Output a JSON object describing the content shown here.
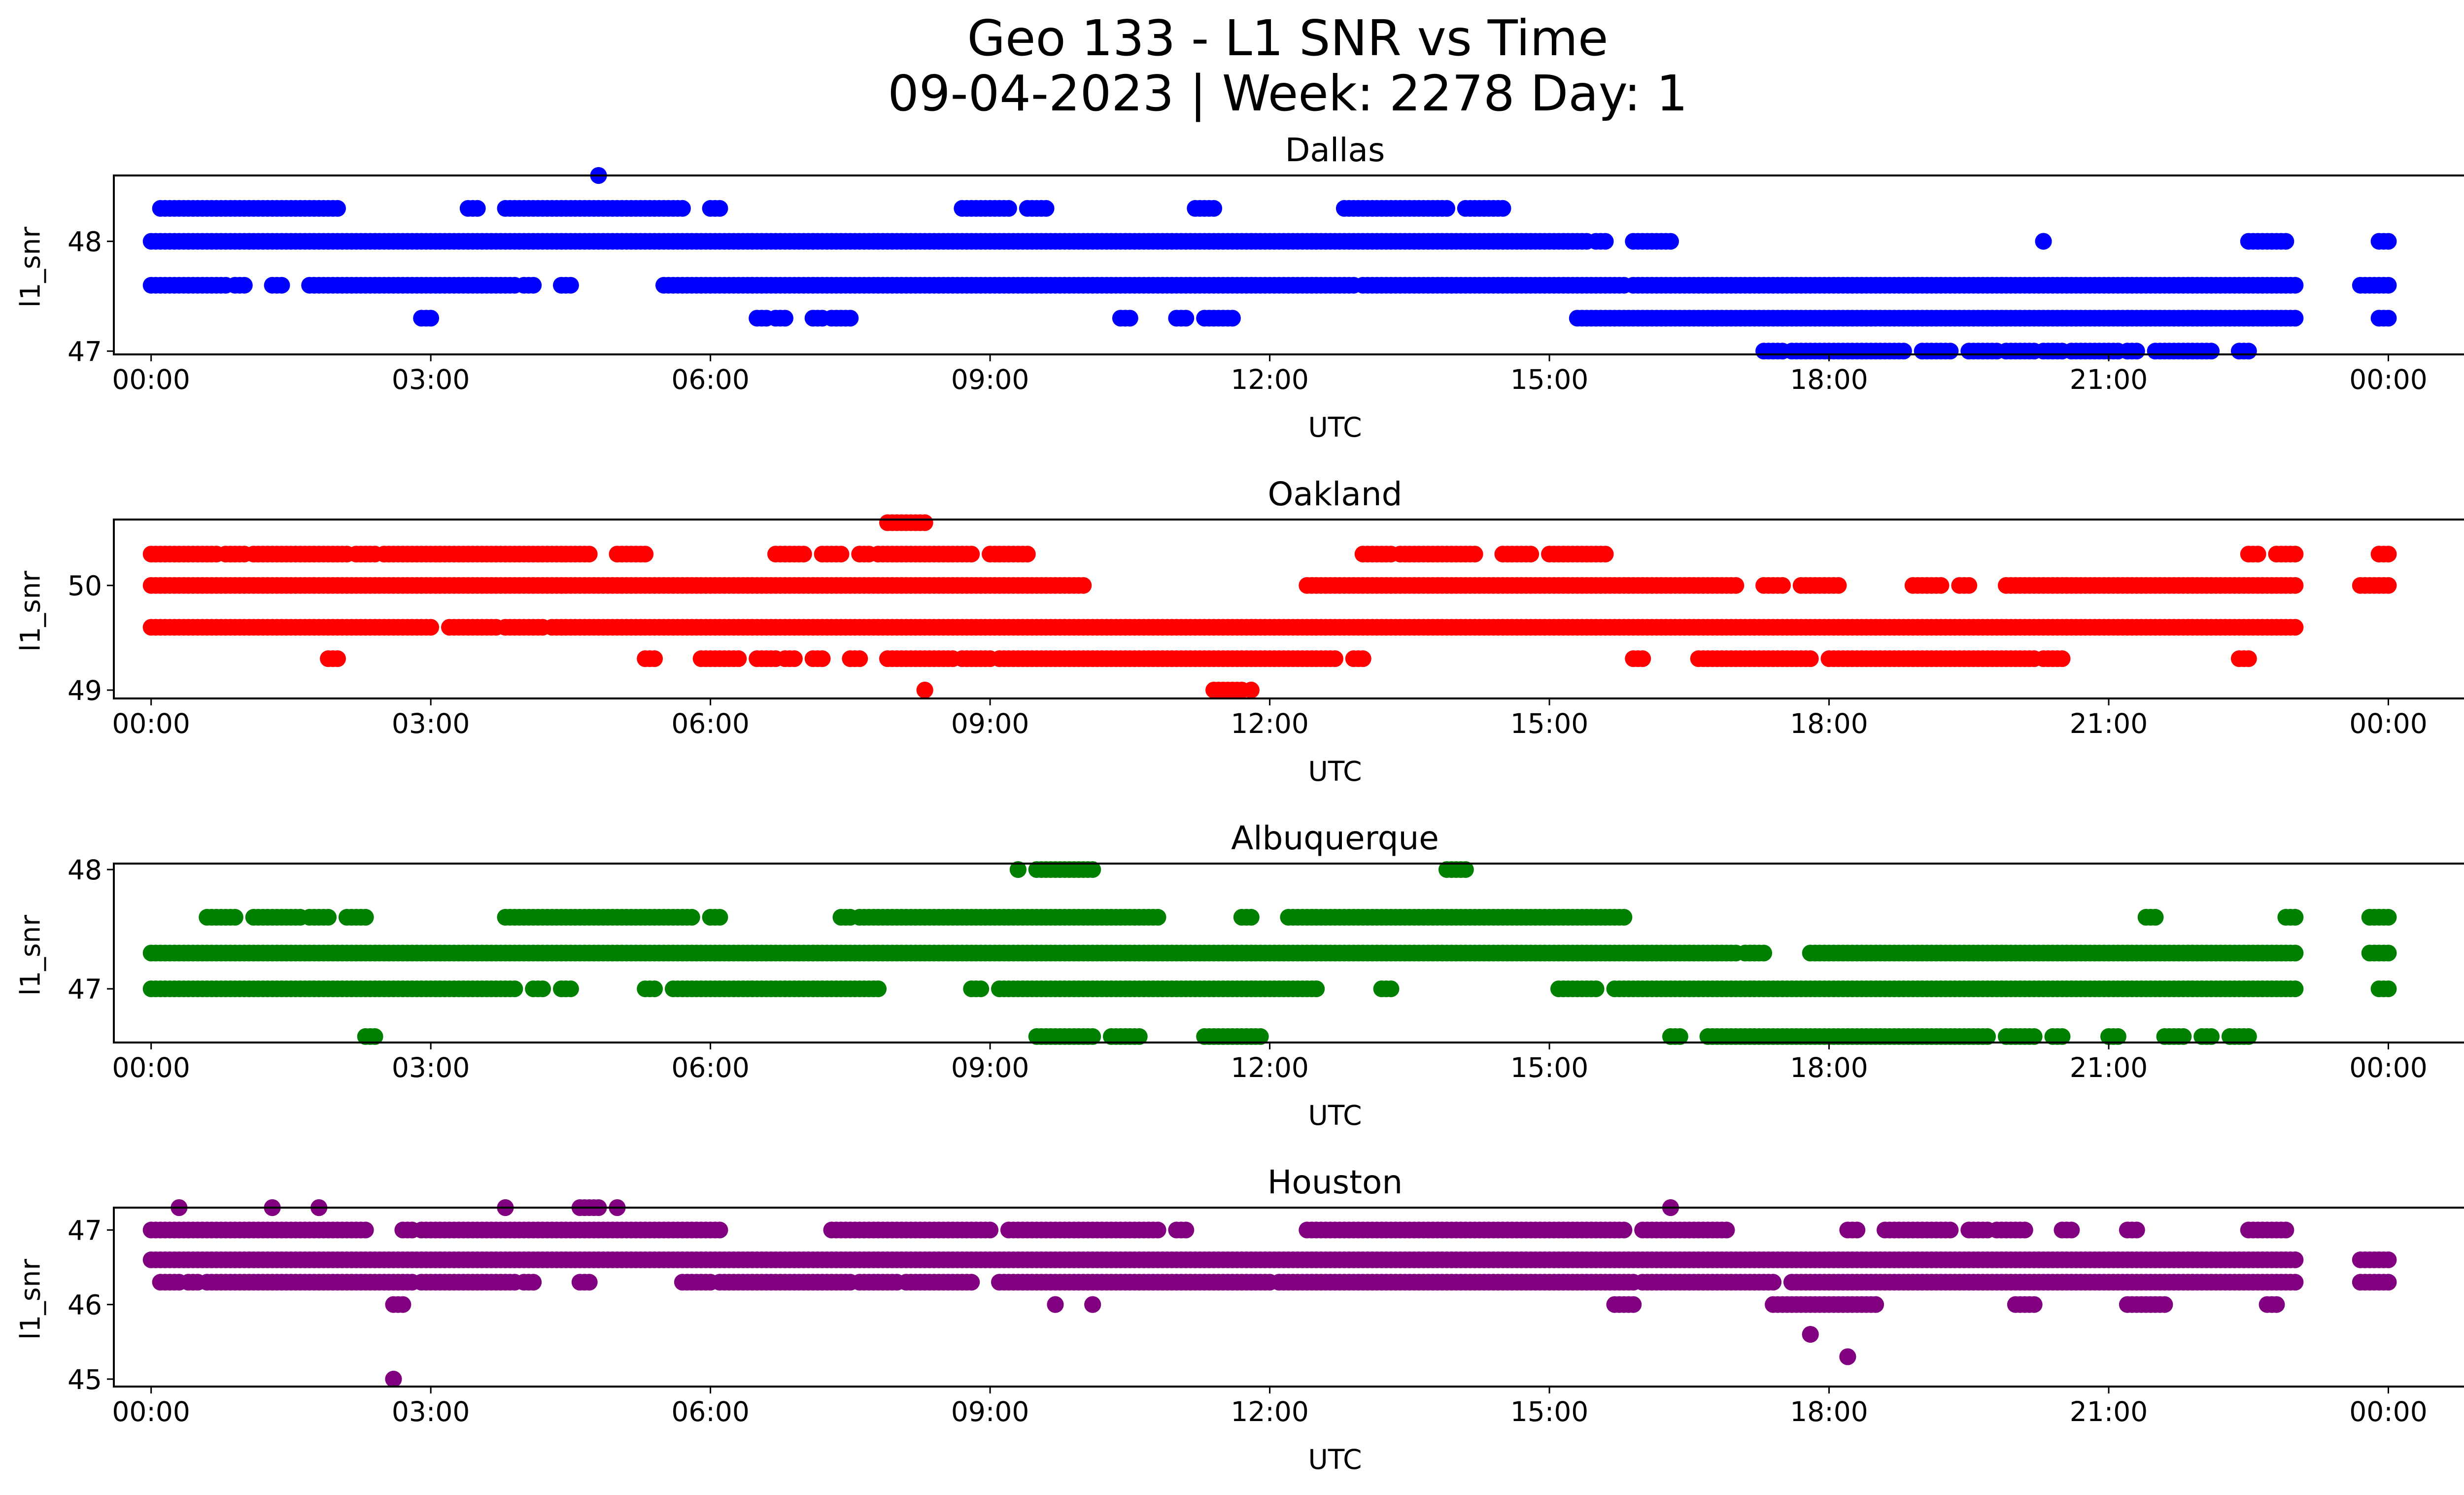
{
  "title": "Geo 133 - L1 SNR vs Time",
  "subtitle": "09-04-2023 | Week: 2278 Day: 1",
  "chart_data": [
    {
      "type": "scatter",
      "title": "Dallas",
      "xlabel": "UTC",
      "ylabel": "l1_snr",
      "color": "#0000ff",
      "xlim": [
        -0.4,
        25.8
      ],
      "ylim": [
        46.97,
        48.6
      ],
      "xticks": [
        "00:00",
        "03:00",
        "06:00",
        "09:00",
        "12:00",
        "15:00",
        "18:00",
        "21:00",
        "00:00"
      ],
      "yticks": [
        47,
        48
      ],
      "series": [
        {
          "level": 48.0,
          "segments": [
            [
              0.0,
              15.4
            ],
            [
              15.5,
              15.6
            ],
            [
              15.9,
              16.3
            ],
            [
              22.5,
              22.9
            ],
            [
              23.9,
              24.0
            ]
          ]
        },
        {
          "level": 48.3,
          "segments": [
            [
              0.1,
              2.0
            ],
            [
              3.4,
              3.5
            ],
            [
              3.8,
              5.7
            ],
            [
              6.0,
              6.1
            ],
            [
              8.7,
              9.2
            ],
            [
              9.4,
              9.6
            ],
            [
              11.2,
              11.4
            ],
            [
              12.8,
              13.9
            ],
            [
              14.1,
              14.5
            ]
          ]
        },
        {
          "level": 47.6,
          "segments": [
            [
              0.0,
              0.8
            ],
            [
              0.9,
              1.0
            ],
            [
              1.3,
              1.4
            ],
            [
              1.7,
              3.9
            ],
            [
              4.0,
              4.1
            ],
            [
              4.4,
              4.5
            ],
            [
              5.5,
              12.9
            ],
            [
              13.0,
              15.8
            ],
            [
              15.9,
              23.0
            ],
            [
              23.7,
              24.0
            ]
          ]
        },
        {
          "level": 47.3,
          "segments": [
            [
              2.9,
              3.0
            ],
            [
              6.5,
              6.6
            ],
            [
              6.7,
              6.8
            ],
            [
              7.1,
              7.2
            ],
            [
              7.3,
              7.5
            ],
            [
              10.4,
              10.5
            ],
            [
              11.0,
              11.1
            ],
            [
              11.3,
              11.6
            ],
            [
              15.3,
              23.0
            ],
            [
              23.9,
              24.0
            ]
          ]
        },
        {
          "level": 47.0,
          "segments": [
            [
              17.3,
              17.5
            ],
            [
              17.6,
              18.8
            ],
            [
              19.0,
              19.3
            ],
            [
              19.5,
              19.8
            ],
            [
              19.9,
              20.2
            ],
            [
              20.3,
              20.5
            ],
            [
              20.6,
              21.1
            ],
            [
              21.2,
              21.3
            ],
            [
              21.5,
              22.1
            ],
            [
              22.4,
              22.5
            ]
          ]
        },
        {
          "level": 48.6,
          "segments": [
            [
              4.8,
              4.8
            ]
          ]
        },
        {
          "level": 48.0,
          "segments": [
            [
              20.3,
              20.3
            ]
          ]
        }
      ]
    },
    {
      "type": "scatter",
      "title": "Oakland",
      "xlabel": "UTC",
      "ylabel": "l1_snr",
      "color": "#ff0000",
      "xlim": [
        -0.4,
        25.8
      ],
      "ylim": [
        48.92,
        50.63
      ],
      "xticks": [
        "00:00",
        "03:00",
        "06:00",
        "09:00",
        "12:00",
        "15:00",
        "18:00",
        "21:00",
        "00:00"
      ],
      "yticks": [
        49,
        50
      ],
      "series": [
        {
          "level": 50.0,
          "segments": [
            [
              0.0,
              10.0
            ],
            [
              12.4,
              17.0
            ],
            [
              17.3,
              17.5
            ],
            [
              17.7,
              18.1
            ],
            [
              18.9,
              19.2
            ],
            [
              19.4,
              19.5
            ],
            [
              19.9,
              23.0
            ],
            [
              23.7,
              24.0
            ]
          ]
        },
        {
          "level": 50.3,
          "segments": [
            [
              0.0,
              0.7
            ],
            [
              0.8,
              1.0
            ],
            [
              1.1,
              2.1
            ],
            [
              2.2,
              2.4
            ],
            [
              2.5,
              4.7
            ],
            [
              5.0,
              5.3
            ],
            [
              6.7,
              7.0
            ],
            [
              7.2,
              7.4
            ],
            [
              7.6,
              7.7
            ],
            [
              7.8,
              8.8
            ],
            [
              9.0,
              9.4
            ],
            [
              13.0,
              13.3
            ],
            [
              13.4,
              14.2
            ],
            [
              14.5,
              14.8
            ],
            [
              15.0,
              15.6
            ],
            [
              22.5,
              22.6
            ],
            [
              22.8,
              23.0
            ],
            [
              23.9,
              24.0
            ]
          ]
        },
        {
          "level": 49.6,
          "segments": [
            [
              0.0,
              3.0
            ],
            [
              3.2,
              3.7
            ],
            [
              3.8,
              4.2
            ],
            [
              4.3,
              23.0
            ]
          ]
        },
        {
          "level": 49.3,
          "segments": [
            [
              1.9,
              2.0
            ],
            [
              5.3,
              5.4
            ],
            [
              5.9,
              6.3
            ],
            [
              6.5,
              6.7
            ],
            [
              6.8,
              6.9
            ],
            [
              7.1,
              7.2
            ],
            [
              7.5,
              7.6
            ],
            [
              7.9,
              8.6
            ],
            [
              8.7,
              9.0
            ],
            [
              9.1,
              12.7
            ],
            [
              12.9,
              13.0
            ],
            [
              15.9,
              16.0
            ],
            [
              16.6,
              17.8
            ],
            [
              18.0,
              20.2
            ],
            [
              20.3,
              20.5
            ],
            [
              22.4,
              22.5
            ]
          ]
        },
        {
          "level": 49.0,
          "segments": [
            [
              8.3,
              8.3
            ],
            [
              11.4,
              11.7
            ],
            [
              11.8,
              11.8
            ]
          ]
        },
        {
          "level": 50.6,
          "segments": [
            [
              7.9,
              8.3
            ]
          ]
        }
      ]
    },
    {
      "type": "scatter",
      "title": "Albuquerque",
      "xlabel": "UTC",
      "ylabel": "l1_snr",
      "color": "#008000",
      "xlim": [
        -0.4,
        25.8
      ],
      "ylim": [
        46.55,
        48.05
      ],
      "xticks": [
        "00:00",
        "03:00",
        "06:00",
        "09:00",
        "12:00",
        "15:00",
        "18:00",
        "21:00",
        "00:00"
      ],
      "yticks": [
        47,
        48
      ],
      "series": [
        {
          "level": 47.3,
          "segments": [
            [
              0.0,
              17.0
            ],
            [
              17.1,
              17.3
            ],
            [
              17.8,
              23.0
            ],
            [
              23.8,
              24.0
            ]
          ]
        },
        {
          "level": 47.0,
          "segments": [
            [
              0.0,
              3.9
            ],
            [
              4.1,
              4.2
            ],
            [
              4.4,
              4.5
            ],
            [
              5.3,
              5.4
            ],
            [
              5.6,
              7.8
            ],
            [
              8.8,
              8.9
            ],
            [
              9.1,
              12.5
            ],
            [
              13.2,
              13.3
            ],
            [
              15.1,
              15.5
            ],
            [
              15.7,
              23.0
            ],
            [
              23.9,
              24.0
            ]
          ]
        },
        {
          "level": 47.6,
          "segments": [
            [
              0.6,
              0.9
            ],
            [
              1.1,
              1.6
            ],
            [
              1.7,
              1.9
            ],
            [
              2.1,
              2.3
            ],
            [
              3.8,
              5.8
            ],
            [
              6.0,
              6.1
            ],
            [
              7.4,
              7.5
            ],
            [
              7.6,
              10.8
            ],
            [
              11.7,
              11.8
            ],
            [
              12.2,
              15.8
            ],
            [
              21.4,
              21.5
            ],
            [
              22.9,
              23.0
            ],
            [
              23.8,
              24.0
            ]
          ]
        },
        {
          "level": 46.6,
          "segments": [
            [
              2.3,
              2.4
            ],
            [
              9.5,
              10.1
            ],
            [
              10.3,
              10.6
            ],
            [
              11.3,
              11.9
            ],
            [
              16.3,
              16.4
            ],
            [
              16.7,
              19.7
            ],
            [
              19.9,
              20.2
            ],
            [
              20.4,
              20.5
            ],
            [
              21.0,
              21.1
            ],
            [
              21.6,
              21.8
            ],
            [
              22.0,
              22.1
            ],
            [
              22.3,
              22.5
            ]
          ]
        },
        {
          "level": 48.0,
          "segments": [
            [
              9.3,
              9.3
            ],
            [
              9.5,
              10.1
            ],
            [
              13.9,
              14.1
            ]
          ]
        }
      ]
    },
    {
      "type": "scatter",
      "title": "Houston",
      "xlabel": "UTC",
      "ylabel": "l1_snr",
      "color": "#800080",
      "xlim": [
        -0.4,
        25.8
      ],
      "ylim": [
        44.9,
        47.3
      ],
      "xticks": [
        "00:00",
        "03:00",
        "06:00",
        "09:00",
        "12:00",
        "15:00",
        "18:00",
        "21:00",
        "00:00"
      ],
      "yticks": [
        45,
        46,
        47
      ],
      "series": [
        {
          "level": 46.6,
          "segments": [
            [
              0.0,
              23.0
            ],
            [
              23.7,
              24.0
            ]
          ]
        },
        {
          "level": 47.0,
          "segments": [
            [
              0.0,
              2.3
            ],
            [
              2.7,
              2.8
            ],
            [
              2.9,
              6.1
            ],
            [
              7.3,
              9.0
            ],
            [
              9.2,
              10.8
            ],
            [
              11.0,
              11.1
            ],
            [
              12.4,
              15.8
            ],
            [
              16.0,
              16.9
            ],
            [
              18.2,
              18.3
            ],
            [
              18.6,
              19.3
            ],
            [
              19.5,
              19.7
            ],
            [
              19.8,
              20.1
            ],
            [
              20.5,
              20.6
            ],
            [
              21.2,
              21.3
            ],
            [
              22.5,
              22.9
            ]
          ]
        },
        {
          "level": 46.3,
          "segments": [
            [
              0.1,
              0.3
            ],
            [
              0.4,
              0.5
            ],
            [
              0.6,
              2.8
            ],
            [
              2.9,
              3.9
            ],
            [
              4.0,
              4.1
            ],
            [
              4.6,
              4.7
            ],
            [
              5.7,
              6.0
            ],
            [
              6.1,
              7.5
            ],
            [
              7.6,
              8.0
            ],
            [
              8.1,
              8.8
            ],
            [
              9.1,
              12.0
            ],
            [
              12.1,
              15.9
            ],
            [
              16.0,
              17.4
            ],
            [
              17.6,
              23.0
            ],
            [
              23.7,
              24.0
            ]
          ]
        },
        {
          "level": 46.0,
          "segments": [
            [
              2.6,
              2.7
            ],
            [
              9.7,
              9.7
            ],
            [
              10.1,
              10.1
            ],
            [
              15.7,
              15.9
            ],
            [
              17.4,
              18.5
            ],
            [
              20.0,
              20.2
            ],
            [
              21.2,
              21.6
            ],
            [
              22.7,
              22.8
            ]
          ]
        },
        {
          "level": 47.3,
          "segments": [
            [
              0.3,
              0.3
            ],
            [
              1.3,
              1.3
            ],
            [
              1.8,
              1.8
            ],
            [
              3.8,
              3.8
            ],
            [
              4.6,
              4.8
            ],
            [
              5.0,
              5.0
            ],
            [
              16.3,
              16.3
            ]
          ]
        },
        {
          "level": 45.6,
          "segments": [
            [
              17.8,
              17.8
            ]
          ]
        },
        {
          "level": 45.3,
          "segments": [
            [
              18.2,
              18.2
            ]
          ]
        },
        {
          "level": 45.0,
          "segments": [
            [
              2.6,
              2.6
            ]
          ]
        }
      ]
    }
  ]
}
